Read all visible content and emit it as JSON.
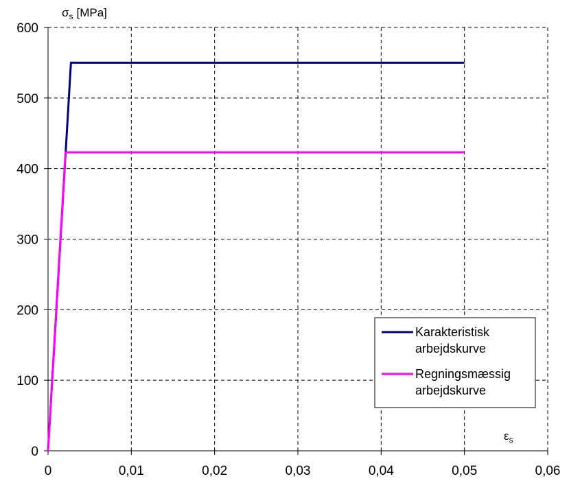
{
  "chart_data": {
    "type": "line",
    "xlabel": "ε",
    "xlabel_sub": "s",
    "ylabel": "σ",
    "ylabel_sub": "s",
    "ylabel_unit": "[MPa]",
    "xlim": [
      0,
      0.06
    ],
    "ylim": [
      0,
      600
    ],
    "x_ticks": [
      0,
      0.01,
      0.02,
      0.03,
      0.04,
      0.05,
      0.06
    ],
    "x_tick_labels": [
      "0",
      "0,01",
      "0,02",
      "0,03",
      "0,04",
      "0,05",
      "0,06"
    ],
    "y_ticks": [
      0,
      100,
      200,
      300,
      400,
      500,
      600
    ],
    "y_tick_labels": [
      "0",
      "100",
      "200",
      "300",
      "400",
      "500",
      "600"
    ],
    "grid": true,
    "grid_style": "dashed",
    "legend_position": "bottom-right",
    "series": [
      {
        "name": [
          "Karakteristisk",
          "arbejdskurve"
        ],
        "color": "#000080",
        "x": [
          0,
          0.00275,
          0.05
        ],
        "y": [
          0,
          550,
          550
        ]
      },
      {
        "name": [
          "Regningsmæssig",
          "arbejdskurve"
        ],
        "color": "#ff00ff",
        "x": [
          0,
          0.0021,
          0.05
        ],
        "y": [
          0,
          423,
          423
        ]
      }
    ]
  }
}
